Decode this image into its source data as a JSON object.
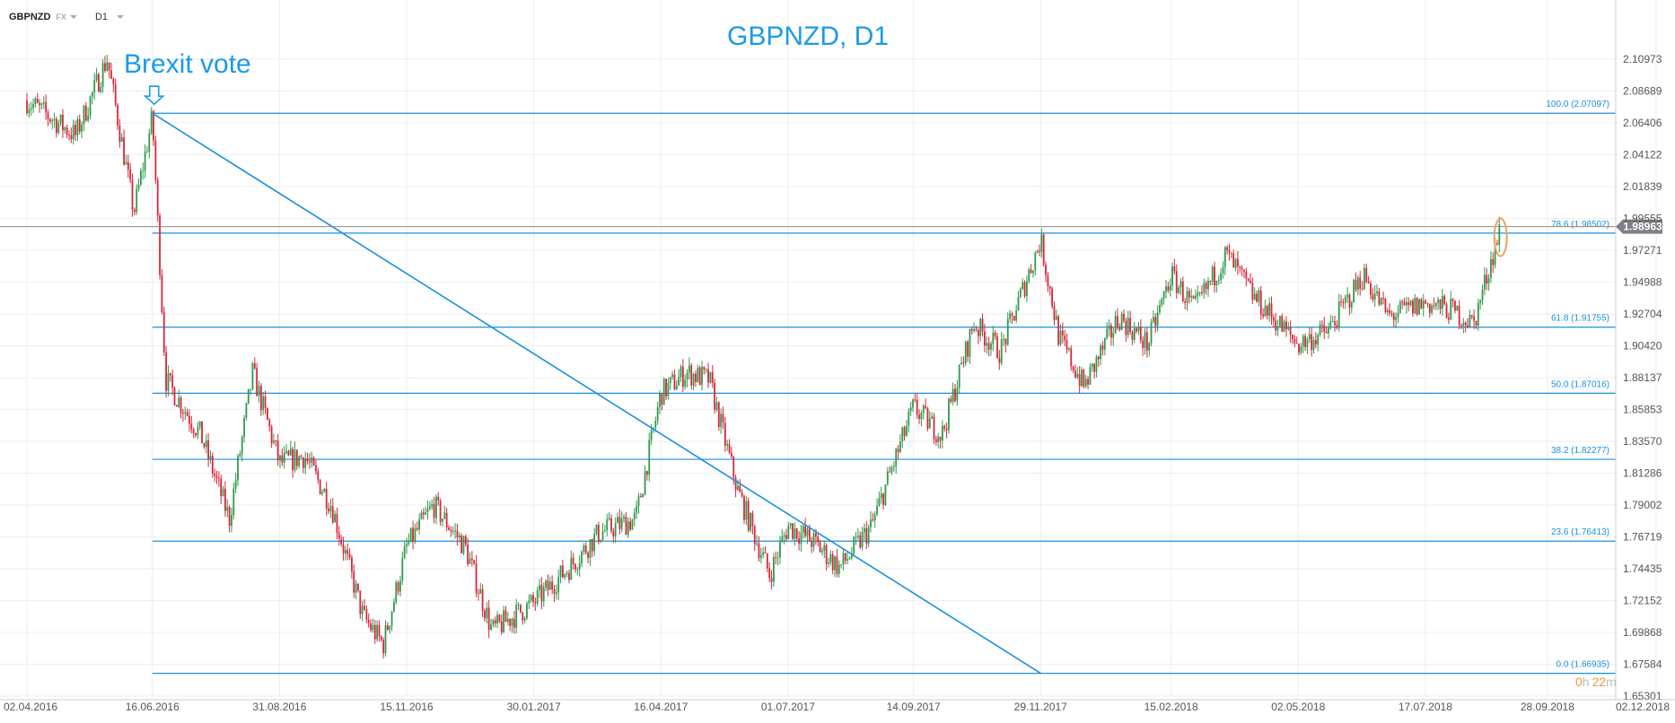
{
  "toolbar": {
    "symbol": "GBPNZD",
    "market": "FX",
    "timeframe": "D1"
  },
  "timer": {
    "hours": "0",
    "h_unit": "h",
    "minutes": "22",
    "m_unit": "m"
  },
  "colors": {
    "up": "#2e9b4a",
    "down": "#d9263a",
    "line": "#1a8fe0",
    "title": "#1a9be6",
    "price_tag": "#7d8087",
    "marker": "#f0a060"
  },
  "chart_data": {
    "type": "candlestick",
    "title": "GBPNZD, D1",
    "ylim": [
      1.65301,
      2.12
    ],
    "y_ticks": [
      "2.10973",
      "2.08689",
      "2.06406",
      "2.04122",
      "2.01839",
      "1.99555",
      "1.97271",
      "1.94988",
      "1.92704",
      "1.90420",
      "1.88137",
      "1.85853",
      "1.83570",
      "1.81286",
      "1.79002",
      "1.76719",
      "1.74435",
      "1.72152",
      "1.69868",
      "1.67584",
      "1.65301"
    ],
    "x_ticks": [
      "02.04.2016",
      "16.06.2016",
      "31.08.2016",
      "15.11.2016",
      "30.01.2017",
      "16.04.2017",
      "01.07.2017",
      "14.09.2017",
      "29.11.2017",
      "15.02.2018",
      "02.05.2018",
      "17.07.2018",
      "28.09.2018",
      "02.12.2018"
    ],
    "current_price": "1.98963",
    "fib_levels": [
      {
        "label": "100.0 (2.07097)",
        "value": 2.07097
      },
      {
        "label": "78.6 (1.98502)",
        "value": 1.98502
      },
      {
        "label": "61.8 (1.91755)",
        "value": 1.91755
      },
      {
        "label": "50.0 (1.87016)",
        "value": 1.87016
      },
      {
        "label": "38.2 (1.82277)",
        "value": 1.82277
      },
      {
        "label": "23.6 (1.76413)",
        "value": 1.76413
      },
      {
        "label": "0.0 (1.66935)",
        "value": 1.66935
      }
    ],
    "annotation": "Brexit vote",
    "trendline": {
      "from": [
        "16.06.2016",
        2.07097
      ],
      "to": [
        "29.11.2017",
        1.66935
      ]
    },
    "series": [
      {
        "name": "GBPNZD",
        "points": [
          [
            "02.04.2016",
            2.08
          ],
          [
            "01.05.2016",
            2.055
          ],
          [
            "20.05.2016",
            2.11
          ],
          [
            "05.06.2016",
            2.0
          ],
          [
            "16.06.2016",
            2.068
          ],
          [
            "24.06.2016",
            1.88
          ],
          [
            "15.07.2016",
            1.84
          ],
          [
            "01.08.2016",
            1.78
          ],
          [
            "15.08.2016",
            1.885
          ],
          [
            "31.08.2016",
            1.82
          ],
          [
            "15.09.2016",
            1.825
          ],
          [
            "01.10.2016",
            1.79
          ],
          [
            "20.10.2016",
            1.71
          ],
          [
            "01.11.2016",
            1.69
          ],
          [
            "15.11.2016",
            1.76
          ],
          [
            "01.12.2016",
            1.79
          ],
          [
            "20.12.2016",
            1.76
          ],
          [
            "05.01.2017",
            1.7
          ],
          [
            "30.01.2017",
            1.72
          ],
          [
            "20.02.2017",
            1.745
          ],
          [
            "10.03.2017",
            1.77
          ],
          [
            "01.04.2017",
            1.78
          ],
          [
            "16.04.2017",
            1.87
          ],
          [
            "01.05.2017",
            1.885
          ],
          [
            "15.05.2017",
            1.88
          ],
          [
            "01.06.2017",
            1.8
          ],
          [
            "20.06.2017",
            1.74
          ],
          [
            "01.07.2017",
            1.775
          ],
          [
            "15.07.2017",
            1.765
          ],
          [
            "01.08.2017",
            1.745
          ],
          [
            "20.08.2017",
            1.775
          ],
          [
            "14.09.2017",
            1.86
          ],
          [
            "01.10.2017",
            1.84
          ],
          [
            "20.10.2017",
            1.92
          ],
          [
            "05.11.2017",
            1.9
          ],
          [
            "20.11.2017",
            1.95
          ],
          [
            "29.11.2017",
            1.98
          ],
          [
            "10.12.2017",
            1.91
          ],
          [
            "25.12.2017",
            1.875
          ],
          [
            "15.01.2018",
            1.925
          ],
          [
            "01.02.2018",
            1.905
          ],
          [
            "15.02.2018",
            1.955
          ],
          [
            "01.03.2018",
            1.93
          ],
          [
            "20.03.2018",
            1.97
          ],
          [
            "05.04.2018",
            1.94
          ],
          [
            "02.05.2018",
            1.905
          ],
          [
            "20.05.2018",
            1.915
          ],
          [
            "10.06.2018",
            1.955
          ],
          [
            "25.06.2018",
            1.925
          ],
          [
            "17.07.2018",
            1.935
          ],
          [
            "01.08.2018",
            1.93
          ],
          [
            "15.08.2018",
            1.92
          ],
          [
            "24.08.2018",
            1.96
          ],
          [
            "31.08.2018",
            1.989
          ]
        ]
      }
    ]
  }
}
